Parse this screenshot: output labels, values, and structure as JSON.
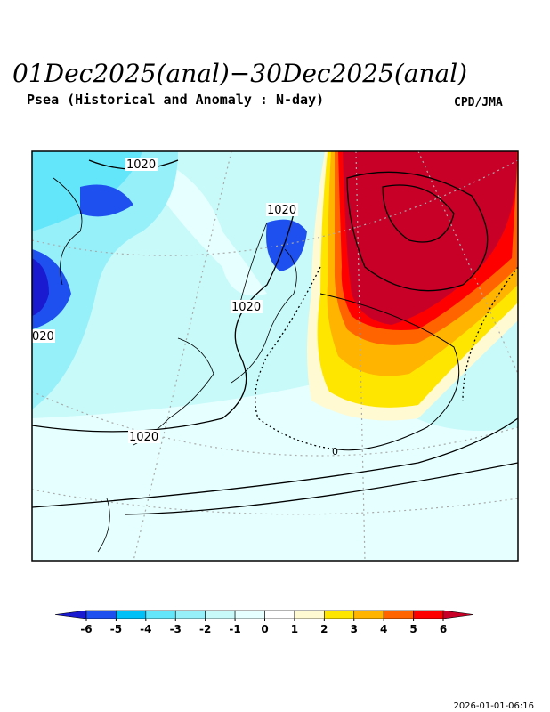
{
  "header": {
    "title": "01Dec2025(anal)−30Dec2025(anal)",
    "subtitle": "Psea (Historical and Anomaly : N-day)",
    "credit": "CPD/JMA"
  },
  "map": {
    "contour_labels": [
      "1020",
      "1020",
      "1020",
      "020",
      "1020",
      "0"
    ]
  },
  "colorbar": {
    "ticks": [
      -6,
      -5,
      -4,
      -3,
      -2,
      -1,
      0,
      1,
      2,
      3,
      4,
      5,
      6
    ],
    "colors": [
      "#1a1ad0",
      "#1e50f0",
      "#00c0f8",
      "#64e6fa",
      "#96f0fa",
      "#c8fafa",
      "#e6ffff",
      "#ffffff",
      "#fffad2",
      "#ffe600",
      "#ffb400",
      "#ff6400",
      "#ff0000",
      "#c80028"
    ]
  },
  "timestamp": "2026-01-01-06:16"
}
